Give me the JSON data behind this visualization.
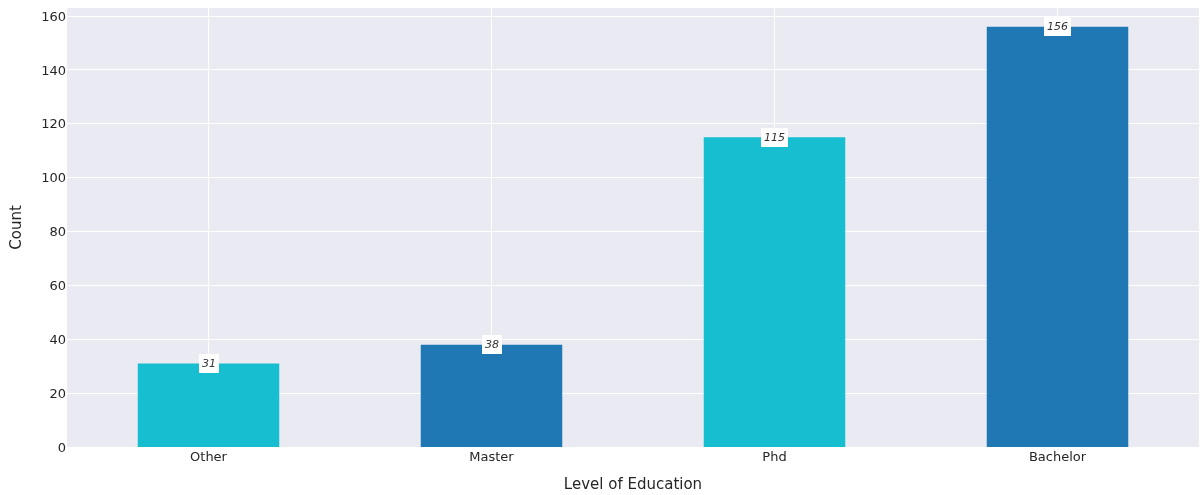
{
  "chart_data": {
    "type": "bar",
    "xlabel": "Level of Education",
    "ylabel": "Count",
    "categories": [
      "Other",
      "Master",
      "Phd",
      "Bachelor"
    ],
    "values": [
      31,
      38,
      115,
      156
    ],
    "colors": [
      "#17becf",
      "#1f77b4",
      "#17becf",
      "#1f77b4"
    ],
    "ylim": [
      0,
      163
    ],
    "yticks": [
      0,
      20,
      40,
      60,
      80,
      100,
      120,
      140,
      160
    ],
    "grid": true,
    "data_labels": true
  }
}
